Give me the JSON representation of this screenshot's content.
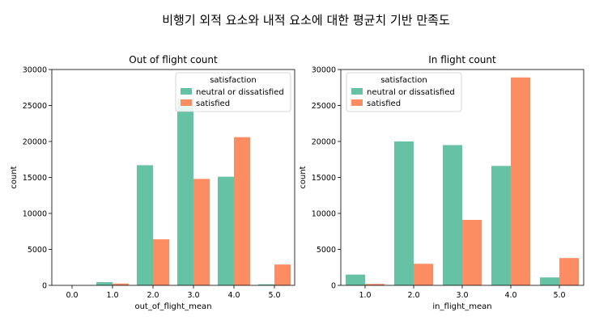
{
  "suptitle": "비행기 외적 요소와 내적 요소에 대한 평균치 기반 만족도",
  "colors": {
    "neutral": "#66c2a5",
    "satisfied": "#fc8d62"
  },
  "chart_data": [
    {
      "type": "bar",
      "title": "Out of flight count",
      "xlabel": "out_of_flight_mean",
      "ylabel": "count",
      "categories": [
        "0.0",
        "1.0",
        "2.0",
        "3.0",
        "4.0",
        "5.0"
      ],
      "series": [
        {
          "name": "neutral or dissatisfied",
          "values": [
            0,
            450,
            16700,
            26000,
            15100,
            150
          ]
        },
        {
          "name": "satisfied",
          "values": [
            0,
            250,
            6400,
            14800,
            20600,
            2900
          ]
        }
      ],
      "ylim": [
        0,
        30000
      ],
      "yticks": [
        0,
        5000,
        10000,
        15000,
        20000,
        25000,
        30000
      ],
      "legend": {
        "title": "satisfaction",
        "position": "upper right"
      },
      "grid": false
    },
    {
      "type": "bar",
      "title": "In flight count",
      "xlabel": "in_flight_mean",
      "ylabel": "count",
      "categories": [
        "1.0",
        "2.0",
        "3.0",
        "4.0",
        "5.0"
      ],
      "series": [
        {
          "name": "neutral or dissatisfied",
          "values": [
            1500,
            20000,
            19500,
            16600,
            1100
          ]
        },
        {
          "name": "satisfied",
          "values": [
            200,
            3000,
            9100,
            28900,
            3800
          ]
        }
      ],
      "ylim": [
        0,
        30000
      ],
      "yticks": [
        0,
        5000,
        10000,
        15000,
        20000,
        25000,
        30000
      ],
      "legend": {
        "title": "satisfaction",
        "position": "upper left"
      },
      "grid": false
    }
  ]
}
